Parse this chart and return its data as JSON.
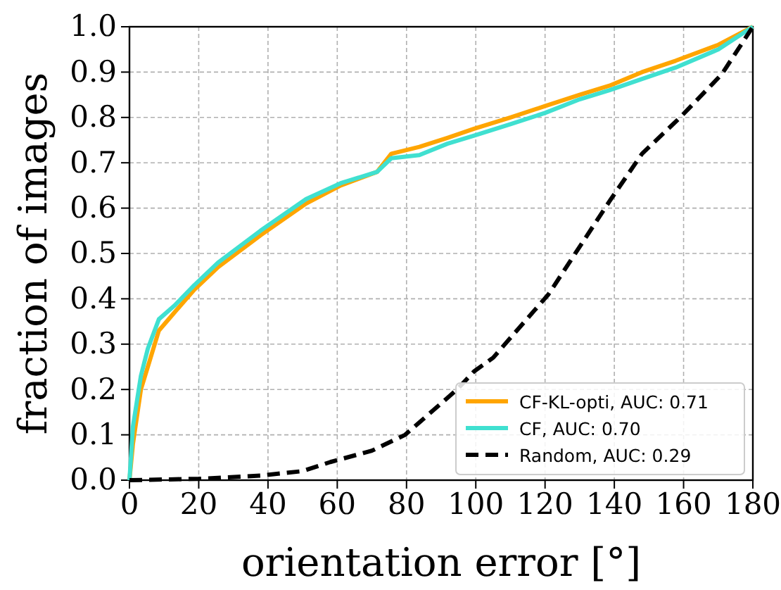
{
  "chart_data": {
    "type": "line",
    "xlabel": "orientation error [°]",
    "ylabel": "fraction of images",
    "xlim": [
      0,
      180
    ],
    "ylim": [
      0,
      1.0
    ],
    "xticks": [
      0,
      20,
      40,
      60,
      80,
      100,
      120,
      140,
      160,
      180
    ],
    "yticks": [
      {
        "value": 0,
        "label": "0.0"
      },
      {
        "value": 0.1,
        "label": "0.1"
      },
      {
        "value": 0.2,
        "label": "0.2"
      },
      {
        "value": 0.3,
        "label": "0.3"
      },
      {
        "value": 0.4,
        "label": "0.4"
      },
      {
        "value": 0.5,
        "label": "0.5"
      },
      {
        "value": 0.6,
        "label": "0.6"
      },
      {
        "value": 0.7,
        "label": "0.7"
      },
      {
        "value": 0.8,
        "label": "0.8"
      },
      {
        "value": 0.9,
        "label": "0.9"
      },
      {
        "value": 1.0,
        "label": "1.0"
      }
    ],
    "grid": true,
    "legend": "bottom right",
    "marker": "none",
    "series": [
      {
        "name": "CF-KL-opti, AUC: 0.71",
        "color": "#ffa500",
        "line_style": "solid",
        "x": [
          0,
          1,
          3.3,
          5.3,
          8.5,
          13,
          18.7,
          25.6,
          37.8,
          51,
          61,
          71.5,
          75.6,
          83.7,
          91.8,
          99.5,
          110,
          120,
          130,
          138.6,
          148,
          157.7,
          170,
          180
        ],
        "values": [
          0,
          0.08,
          0.2,
          0.25,
          0.33,
          0.37,
          0.42,
          0.47,
          0.54,
          0.61,
          0.65,
          0.68,
          0.72,
          0.735,
          0.755,
          0.775,
          0.8,
          0.825,
          0.85,
          0.87,
          0.9,
          0.925,
          0.96,
          1.0
        ]
      },
      {
        "name": "CF, AUC: 0.70",
        "color": "#40e0d0",
        "line_style": "solid",
        "x": [
          0,
          1,
          3.3,
          5.3,
          8.5,
          13,
          18.7,
          25.6,
          37.8,
          51,
          61,
          71.5,
          75.6,
          83.7,
          91.8,
          99.5,
          110,
          120,
          130,
          138.6,
          148,
          157.7,
          170,
          180
        ],
        "values": [
          0,
          0.118,
          0.23,
          0.29,
          0.355,
          0.385,
          0.43,
          0.48,
          0.55,
          0.62,
          0.655,
          0.68,
          0.71,
          0.717,
          0.742,
          0.76,
          0.785,
          0.81,
          0.84,
          0.86,
          0.885,
          0.91,
          0.95,
          1.0
        ]
      },
      {
        "name": "Random, AUC: 0.29",
        "color": "#000000",
        "line_style": "dashed",
        "x": [
          0,
          20,
          37.8,
          50,
          58,
          70,
          79.6,
          94.6,
          99.5,
          105,
          121,
          138.6,
          148,
          159,
          171,
          180
        ],
        "values": [
          0,
          0.003,
          0.01,
          0.02,
          0.04,
          0.065,
          0.1,
          0.2,
          0.24,
          0.27,
          0.41,
          0.615,
          0.72,
          0.8,
          0.895,
          1.0
        ]
      }
    ]
  }
}
